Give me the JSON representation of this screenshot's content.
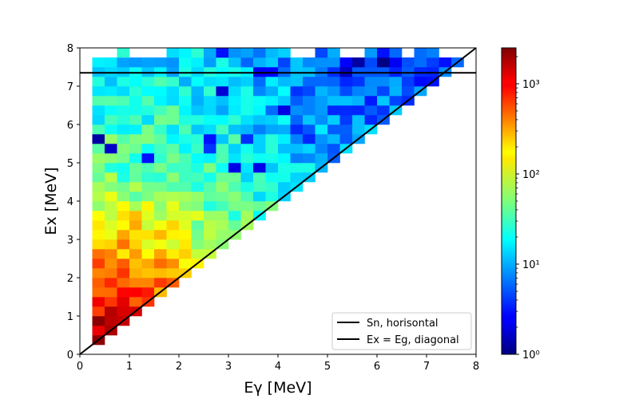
{
  "chart_data": {
    "type": "heatmap",
    "title": "",
    "xlabel": "Eγ [MeV]",
    "ylabel": "Ex [MeV]",
    "xlim": [
      0,
      8
    ],
    "ylim": [
      0,
      8
    ],
    "x_ticks": [
      "0",
      "1",
      "2",
      "3",
      "4",
      "5",
      "6",
      "7",
      "8"
    ],
    "y_ticks": [
      "0",
      "1",
      "2",
      "3",
      "4",
      "5",
      "6",
      "7",
      "8"
    ],
    "bin_width": 0.25,
    "colorbar": {
      "scale": "log",
      "colormap": "jet",
      "range": [
        1,
        2500
      ],
      "major_ticks": [
        1,
        10,
        100,
        1000
      ],
      "major_tick_labels": [
        "10⁰",
        "10¹",
        "10²",
        "10³"
      ]
    },
    "overlays": [
      {
        "name": "Sn, horisontal",
        "kind": "hline",
        "y": 7.35,
        "color": "#000000"
      },
      {
        "name": "Ex = Eg, diagonal",
        "kind": "diagonal",
        "from": [
          0,
          0
        ],
        "to": [
          8,
          8
        ],
        "color": "#000000"
      }
    ],
    "legend_position": "lower-right",
    "grid": false,
    "density_model": {
      "description": "approximate counts per 0.25x0.25 MeV bin, filled only where Eγ ≤ Ex",
      "peak_counts": 2000
    }
  }
}
